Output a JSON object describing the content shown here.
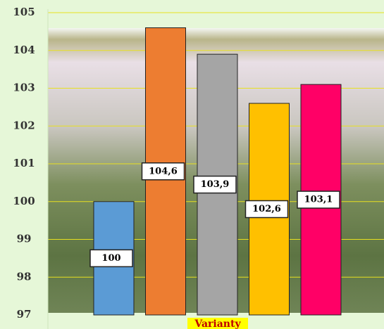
{
  "chart_data": {
    "type": "bar",
    "x_label": "Varianty",
    "categories": [
      null,
      null,
      null,
      null,
      null
    ],
    "values": [
      100,
      104.6,
      103.9,
      102.6,
      103.1
    ],
    "value_labels": [
      "100",
      "104,6",
      "103,9",
      "102,6",
      "103,1"
    ],
    "colors": [
      "#5b9bd5",
      "#ed7d31",
      "#a5a5a5",
      "#ffc000",
      "#ff0066"
    ],
    "ylim": [
      97,
      105
    ],
    "yticks": [
      97,
      98,
      99,
      100,
      101,
      102,
      103,
      104,
      105
    ],
    "grid": true
  }
}
